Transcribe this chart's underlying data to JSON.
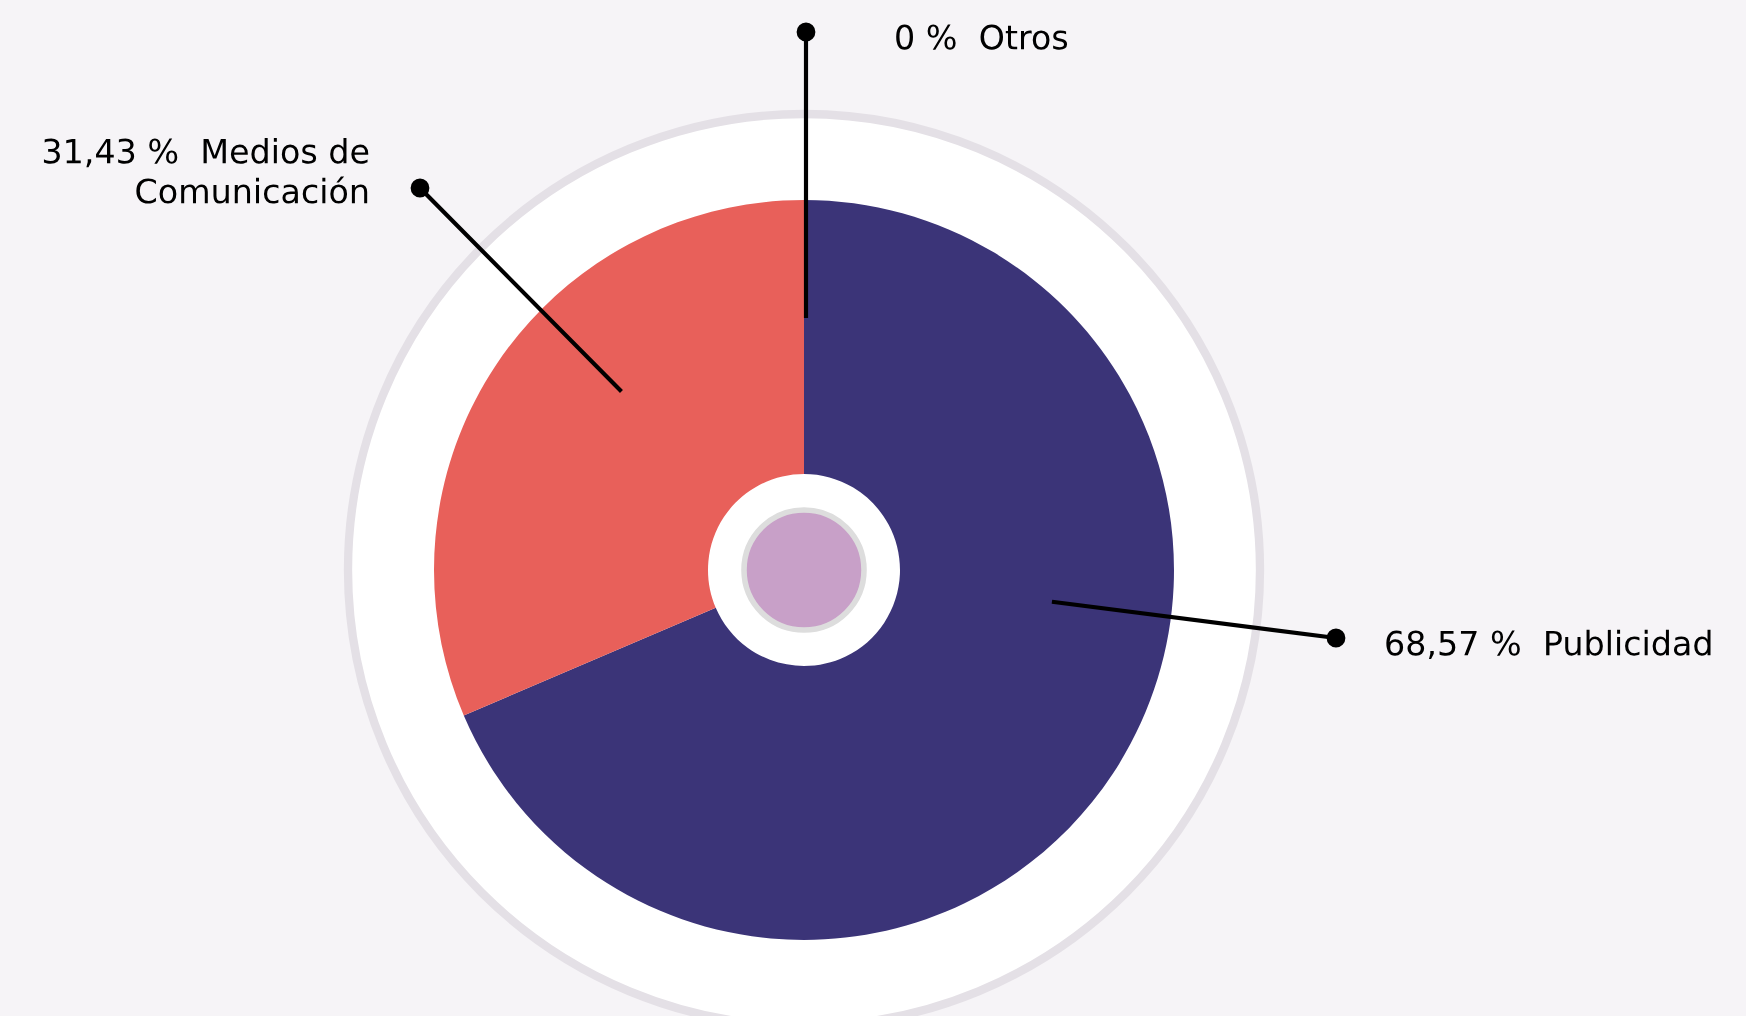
{
  "chart_data": {
    "type": "donut",
    "categories": [
      "Otros",
      "Publicidad",
      "Medios de\nComunicación"
    ],
    "values": [
      0,
      68.57,
      31.43
    ],
    "colors": [
      "#a8a4cc",
      "#3b3478",
      "#e8605a"
    ],
    "value_labels": [
      "0 %",
      "68,57 %",
      "31,43 %"
    ]
  }
}
